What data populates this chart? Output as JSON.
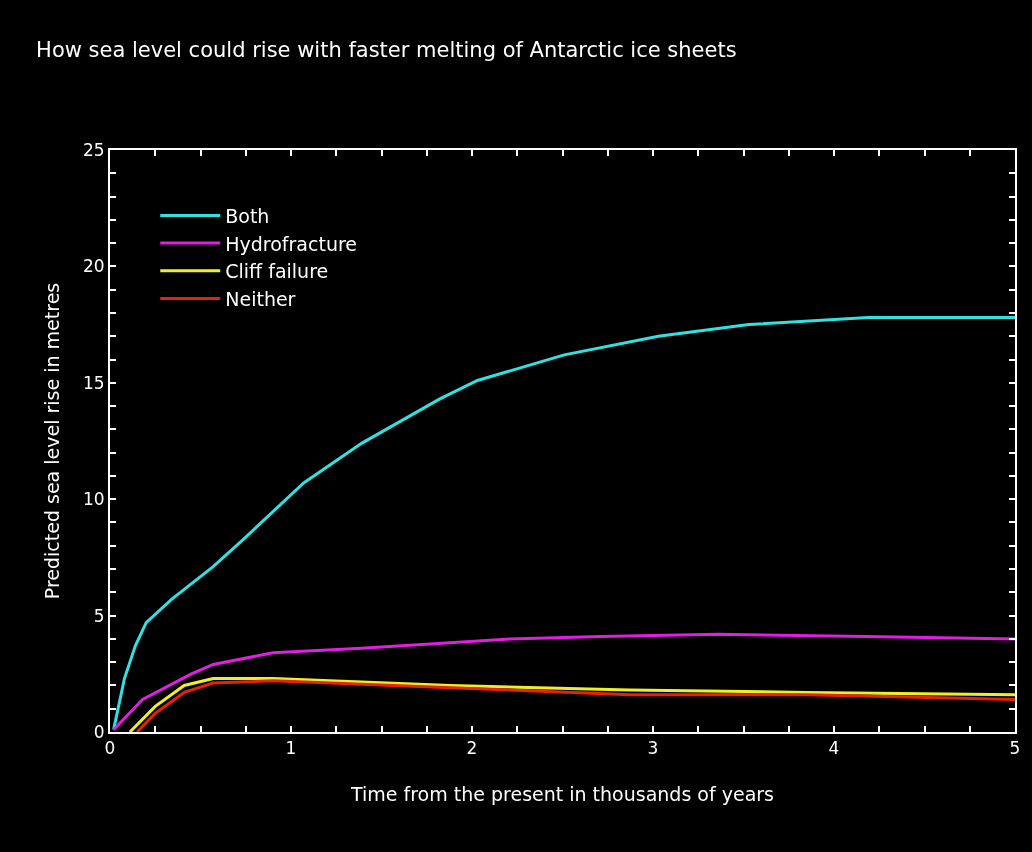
{
  "chart_data": {
    "type": "line",
    "title": "How sea level could rise with faster melting of Antarctic ice sheets",
    "xlabel": "Time from the present in thousands of years",
    "ylabel": "Predicted sea level rise in metres",
    "xlim": [
      0,
      5
    ],
    "ylim": [
      0,
      25
    ],
    "xticks": [
      0,
      {
        "value": 0.25,
        "label": null
      },
      {
        "value": 0.5,
        "label": null
      },
      {
        "value": 0.75,
        "label": null
      },
      1,
      {
        "value": 1.25,
        "label": null
      },
      {
        "value": 1.5,
        "label": null
      },
      {
        "value": 1.75,
        "label": null
      },
      2,
      {
        "value": 2.25,
        "label": null
      },
      {
        "value": 2.5,
        "label": null
      },
      {
        "value": 2.75,
        "label": null
      },
      3,
      {
        "value": 3.25,
        "label": null
      },
      {
        "value": 3.5,
        "label": null
      },
      {
        "value": 3.75,
        "label": null
      },
      4,
      {
        "value": 4.25,
        "label": null
      },
      {
        "value": 4.5,
        "label": null
      },
      {
        "value": 4.75,
        "label": null
      },
      5
    ],
    "yticks": [
      0,
      {
        "value": 1,
        "label": null
      },
      {
        "value": 2,
        "label": null
      },
      {
        "value": 3,
        "label": null
      },
      {
        "value": 4,
        "label": null
      },
      5,
      {
        "value": 6,
        "label": null
      },
      {
        "value": 7,
        "label": null
      },
      {
        "value": 8,
        "label": null
      },
      {
        "value": 9,
        "label": null
      },
      10,
      {
        "value": 11,
        "label": null
      },
      {
        "value": 12,
        "label": null
      },
      {
        "value": 13,
        "label": null
      },
      {
        "value": 14,
        "label": null
      },
      15,
      {
        "value": 16,
        "label": null
      },
      {
        "value": 17,
        "label": null
      },
      {
        "value": 18,
        "label": null
      },
      {
        "value": 19,
        "label": null
      },
      20,
      {
        "value": 21,
        "label": null
      },
      {
        "value": 22,
        "label": null
      },
      {
        "value": 23,
        "label": null
      },
      {
        "value": 24,
        "label": null
      },
      25
    ],
    "grid": false,
    "legend": "top left",
    "marker": "none",
    "line_style": "solid",
    "series": [
      {
        "name": "Both",
        "color": "#33e0e0",
        "x": [
          0.02,
          0.08,
          0.14,
          0.2,
          0.34,
          0.57,
          0.74,
          1.07,
          1.39,
          1.82,
          2.03,
          2.51,
          3.03,
          3.53,
          4.19,
          5.0
        ],
        "values": [
          0.1,
          2.3,
          3.7,
          4.7,
          5.7,
          7.1,
          8.3,
          10.7,
          12.4,
          14.3,
          15.1,
          16.2,
          17.0,
          17.5,
          17.8,
          17.8
        ]
      },
      {
        "name": "Hydrofracture",
        "color": "#e020e0",
        "x": [
          0.02,
          0.18,
          0.45,
          0.57,
          0.9,
          1.39,
          2.21,
          2.71,
          3.36,
          4.18,
          5.0
        ],
        "values": [
          0.1,
          1.4,
          2.5,
          2.9,
          3.4,
          3.6,
          4.0,
          4.1,
          4.2,
          4.1,
          4.0
        ]
      },
      {
        "name": "Cliff failure",
        "color": "#f0f020",
        "x": [
          0.11,
          0.25,
          0.41,
          0.57,
          0.9,
          1.88,
          2.87,
          3.85,
          5.0
        ],
        "values": [
          0.0,
          1.1,
          2.0,
          2.3,
          2.3,
          2.0,
          1.8,
          1.7,
          1.6
        ]
      },
      {
        "name": "Neither",
        "color": "#e82010",
        "x": [
          0.15,
          0.25,
          0.41,
          0.57,
          0.9,
          1.88,
          2.87,
          3.85,
          5.0
        ],
        "values": [
          0.0,
          0.8,
          1.7,
          2.1,
          2.2,
          1.9,
          1.6,
          1.6,
          1.4
        ]
      }
    ]
  }
}
